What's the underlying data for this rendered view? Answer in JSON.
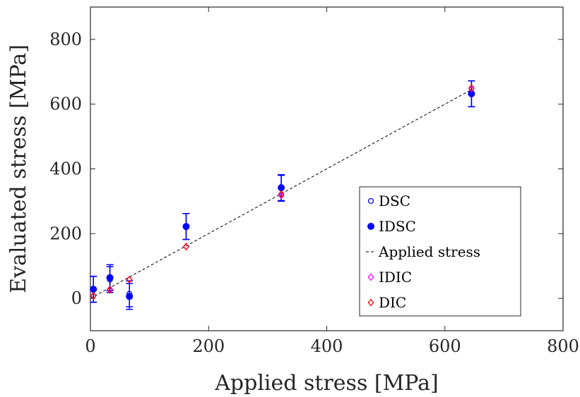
{
  "chart_data": {
    "type": "scatter",
    "title": "",
    "xlabel": "Applied stress [MPa]",
    "ylabel": "Evaluated stress [MPa]",
    "xlim": [
      0,
      800
    ],
    "ylim": [
      -100,
      900
    ],
    "xticks": [
      0,
      200,
      400,
      600,
      800
    ],
    "yticks": [
      0,
      200,
      400,
      600,
      800
    ],
    "grid": false,
    "legend_position": "lower-right",
    "series": [
      {
        "name": "DSC",
        "marker": "open-circle",
        "color": "#0000ff",
        "points": [
          {
            "x": 5,
            "y": 28,
            "err": 40
          },
          {
            "x": 33,
            "y": 58,
            "err": 40
          },
          {
            "x": 66,
            "y": 14,
            "err": 40
          },
          {
            "x": 162,
            "y": 222,
            "err": 40
          },
          {
            "x": 323,
            "y": 340,
            "err": 40
          },
          {
            "x": 645,
            "y": 632,
            "err": 40
          }
        ]
      },
      {
        "name": "IDSC",
        "marker": "filled-circle",
        "color": "#0000ff",
        "points": [
          {
            "x": 5,
            "y": 28,
            "err": 40
          },
          {
            "x": 33,
            "y": 64,
            "err": 40
          },
          {
            "x": 66,
            "y": 6,
            "err": 40
          },
          {
            "x": 162,
            "y": 222,
            "err": 40
          },
          {
            "x": 323,
            "y": 342,
            "err": 40
          },
          {
            "x": 645,
            "y": 632,
            "err": 40
          }
        ]
      },
      {
        "name": "Applied stress",
        "marker": "dashed-line",
        "color": "#000000",
        "points": [
          {
            "x": 0,
            "y": 0
          },
          {
            "x": 645,
            "y": 645
          }
        ]
      },
      {
        "name": "IDIC",
        "marker": "diamond",
        "color": "#ff00ff",
        "points": [
          {
            "x": 5,
            "y": 8
          },
          {
            "x": 33,
            "y": 28
          },
          {
            "x": 66,
            "y": 58
          },
          {
            "x": 162,
            "y": 160
          },
          {
            "x": 323,
            "y": 318
          },
          {
            "x": 645,
            "y": 648
          }
        ]
      },
      {
        "name": "DIC",
        "marker": "diamond",
        "color": "#ff0000",
        "points": [
          {
            "x": 5,
            "y": 8
          },
          {
            "x": 33,
            "y": 26
          },
          {
            "x": 66,
            "y": 58
          },
          {
            "x": 162,
            "y": 160
          },
          {
            "x": 323,
            "y": 322
          },
          {
            "x": 645,
            "y": 650
          }
        ]
      }
    ]
  }
}
